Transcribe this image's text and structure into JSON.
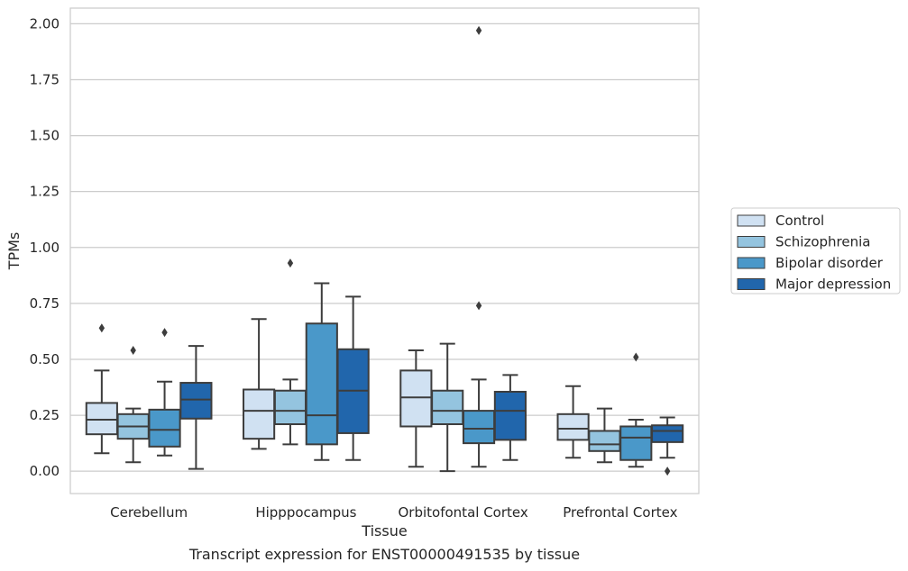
{
  "caption": "Transcript expression for ENST00000491535 by tissue",
  "chart_data": {
    "type": "box",
    "xlabel": "Tissue",
    "ylabel": "TPMs",
    "ylim": [
      -0.1,
      2.07
    ],
    "yticks": [
      0.0,
      0.25,
      0.5,
      0.75,
      1.0,
      1.25,
      1.5,
      1.75,
      2.0
    ],
    "ytick_labels": [
      "0.00",
      "0.25",
      "0.50",
      "0.75",
      "1.00",
      "1.25",
      "1.50",
      "1.75",
      "2.00"
    ],
    "grid": "horizontal",
    "legend_position": "right",
    "categories": [
      "Cerebellum",
      "Hipppocampus",
      "Orbitofontal Cortex",
      "Prefrontal Cortex"
    ],
    "series": [
      {
        "name": "Control",
        "color": "#d0e1f2",
        "boxes": [
          {
            "whislo": 0.08,
            "q1": 0.165,
            "med": 0.23,
            "q3": 0.305,
            "whishi": 0.45,
            "fliers": [
              0.64
            ]
          },
          {
            "whislo": 0.1,
            "q1": 0.145,
            "med": 0.27,
            "q3": 0.365,
            "whishi": 0.68,
            "fliers": []
          },
          {
            "whislo": 0.02,
            "q1": 0.2,
            "med": 0.33,
            "q3": 0.45,
            "whishi": 0.54,
            "fliers": []
          },
          {
            "whislo": 0.06,
            "q1": 0.14,
            "med": 0.19,
            "q3": 0.255,
            "whishi": 0.38,
            "fliers": []
          }
        ]
      },
      {
        "name": "Schizophrenia",
        "color": "#94c4df",
        "boxes": [
          {
            "whislo": 0.04,
            "q1": 0.145,
            "med": 0.2,
            "q3": 0.255,
            "whishi": 0.28,
            "fliers": [
              0.54
            ]
          },
          {
            "whislo": 0.12,
            "q1": 0.21,
            "med": 0.27,
            "q3": 0.36,
            "whishi": 0.41,
            "fliers": [
              0.93
            ]
          },
          {
            "whislo": 0.0,
            "q1": 0.21,
            "med": 0.27,
            "q3": 0.36,
            "whishi": 0.57,
            "fliers": []
          },
          {
            "whislo": 0.04,
            "q1": 0.09,
            "med": 0.12,
            "q3": 0.18,
            "whishi": 0.28,
            "fliers": []
          }
        ]
      },
      {
        "name": "Bipolar disorder",
        "color": "#4a98c9",
        "boxes": [
          {
            "whislo": 0.07,
            "q1": 0.11,
            "med": 0.185,
            "q3": 0.275,
            "whishi": 0.4,
            "fliers": [
              0.62
            ]
          },
          {
            "whislo": 0.05,
            "q1": 0.12,
            "med": 0.25,
            "q3": 0.66,
            "whishi": 0.84,
            "fliers": []
          },
          {
            "whislo": 0.02,
            "q1": 0.125,
            "med": 0.19,
            "q3": 0.27,
            "whishi": 0.41,
            "fliers": [
              0.74,
              1.97
            ]
          },
          {
            "whislo": 0.02,
            "q1": 0.05,
            "med": 0.15,
            "q3": 0.2,
            "whishi": 0.23,
            "fliers": [
              0.51
            ]
          }
        ]
      },
      {
        "name": "Major depression",
        "color": "#2166ac",
        "boxes": [
          {
            "whislo": 0.01,
            "q1": 0.235,
            "med": 0.32,
            "q3": 0.395,
            "whishi": 0.56,
            "fliers": []
          },
          {
            "whislo": 0.05,
            "q1": 0.17,
            "med": 0.36,
            "q3": 0.545,
            "whishi": 0.78,
            "fliers": []
          },
          {
            "whislo": 0.05,
            "q1": 0.14,
            "med": 0.27,
            "q3": 0.355,
            "whishi": 0.43,
            "fliers": []
          },
          {
            "whislo": 0.06,
            "q1": 0.13,
            "med": 0.18,
            "q3": 0.205,
            "whishi": 0.24,
            "fliers": [
              0.0
            ]
          }
        ]
      }
    ]
  }
}
